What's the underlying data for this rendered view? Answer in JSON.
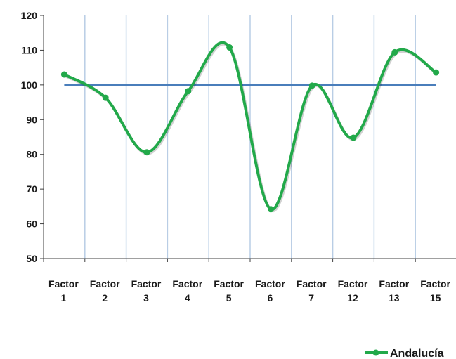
{
  "chart_data": {
    "type": "line",
    "title": "",
    "xlabel": "",
    "ylabel": "",
    "categories": [
      [
        "Factor",
        "1"
      ],
      [
        "Factor",
        "2"
      ],
      [
        "Factor",
        "3"
      ],
      [
        "Factor",
        "4"
      ],
      [
        "Factor",
        "5"
      ],
      [
        "Factor",
        "6"
      ],
      [
        "Factor",
        "7"
      ],
      [
        "Factor",
        "12"
      ],
      [
        "Factor",
        "13"
      ],
      [
        "Factor",
        "15"
      ]
    ],
    "ylim": [
      50,
      120
    ],
    "yticks": [
      "50",
      "60",
      "70",
      "80",
      "90",
      "100",
      "110",
      "120"
    ],
    "grid": "vertical",
    "series": [
      {
        "name": "Andalucía",
        "values": [
          103,
          96.3,
          80.6,
          98.2,
          110.8,
          64.2,
          99.8,
          84.8,
          109.4,
          103.6
        ],
        "color": "#22a94a",
        "smooth": true,
        "markers": true
      },
      {
        "values": [
          100,
          100,
          100,
          100,
          100,
          100,
          100,
          100,
          100,
          100
        ],
        "color": "#4a7ebb",
        "smooth": false,
        "markers": false
      }
    ],
    "legend": "bottom-right",
    "gridColor": "#b9cde5",
    "axisColor": "#404040"
  }
}
